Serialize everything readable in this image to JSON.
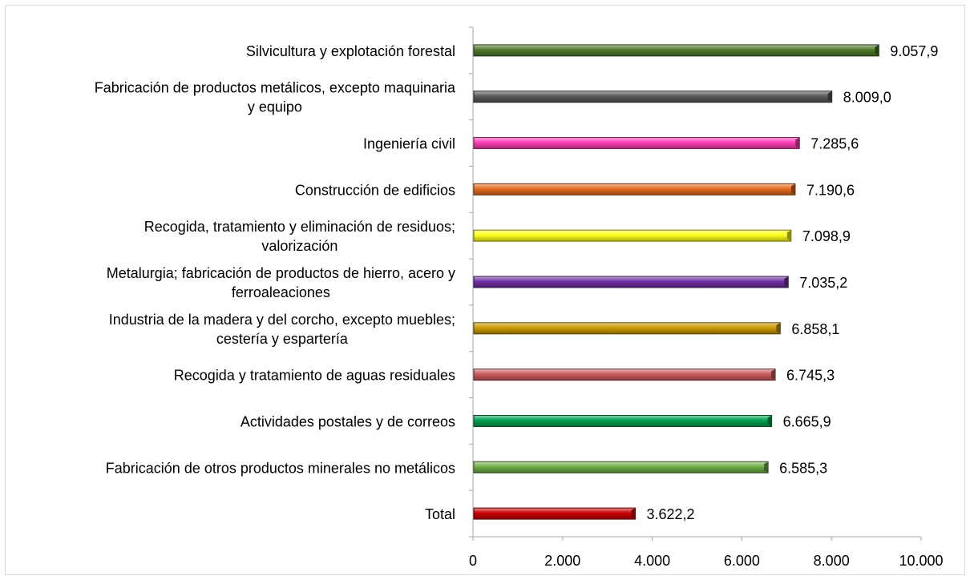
{
  "chart_data": {
    "type": "bar",
    "orientation": "horizontal",
    "categories": [
      [
        "Silvicultura y explotación forestal"
      ],
      [
        "Fabricación de productos metálicos, excepto maquinaria",
        "y equipo"
      ],
      [
        "Ingeniería civil"
      ],
      [
        "Construcción de edificios"
      ],
      [
        "Recogida, tratamiento y eliminación de residuos;",
        "valorización"
      ],
      [
        "Metalurgia; fabricación de productos de hierro, acero y",
        "ferroaleaciones"
      ],
      [
        "Industria de la madera y del corcho, excepto muebles;",
        "cestería y espartería"
      ],
      [
        "Recogida y tratamiento de aguas residuales"
      ],
      [
        "Actividades postales y de correos"
      ],
      [
        "Fabricación de otros productos minerales no metálicos"
      ],
      [
        "Total"
      ]
    ],
    "values": [
      9057.9,
      8009.0,
      7285.6,
      7190.6,
      7098.9,
      7035.2,
      6858.1,
      6745.3,
      6665.9,
      6585.3,
      3622.2
    ],
    "value_labels": [
      "9.057,9",
      "8.009,0",
      "7.285,6",
      "7.190,6",
      "7.098,9",
      "7.035,2",
      "6.858,1",
      "6.745,3",
      "6.665,9",
      "6.585,3",
      "3.622,2"
    ],
    "colors": [
      "#4f7a28",
      "#595959",
      "#ff3eb5",
      "#e46c1e",
      "#ffff1a",
      "#7030a0",
      "#cc9900",
      "#cd5c5c",
      "#00a050",
      "#70ad47",
      "#cc0000"
    ],
    "xlim": [
      0,
      10000
    ],
    "xticks": [
      0,
      2000,
      4000,
      6000,
      8000,
      10000
    ],
    "xtick_labels": [
      "0",
      "2.000",
      "4.000",
      "6.000",
      "8.000",
      "10.000"
    ],
    "title": "",
    "xlabel": "",
    "ylabel": "",
    "grid": false,
    "legend": "none"
  }
}
